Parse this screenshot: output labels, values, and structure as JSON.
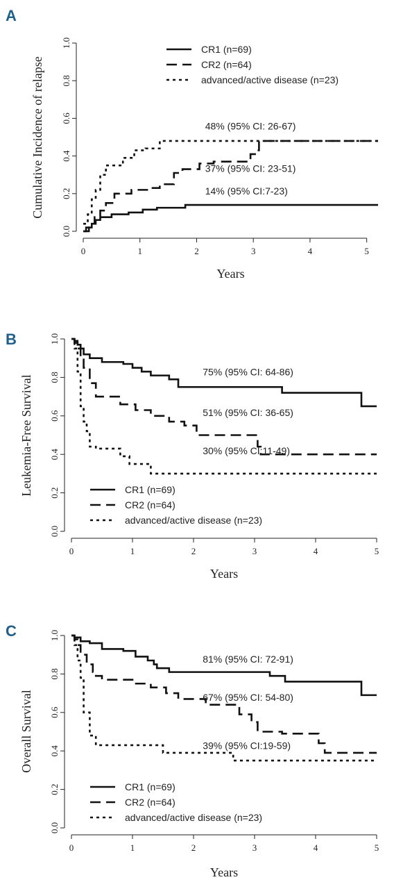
{
  "legend_labels": [
    "CR1 (n=69)",
    "CR2 (n=64)",
    "advanced/active disease (n=23)"
  ],
  "chart_data": [
    {
      "panel": "A",
      "type": "line",
      "xlabel": "Years",
      "ylabel": "Cumulative Incidence of relapse",
      "xlim": [
        0,
        5.2
      ],
      "ylim": [
        0,
        1
      ],
      "xticks": [
        "0",
        "1",
        "2",
        "3",
        "4",
        "5"
      ],
      "yticks": [
        "0.0",
        "0.2",
        "0.4",
        "0.6",
        "0.8",
        "1.0"
      ],
      "legend_position": "top-right",
      "series": [
        {
          "name": "CR1 (n=69)",
          "style": "solid",
          "x": [
            0,
            0.1,
            0.15,
            0.22,
            0.3,
            0.5,
            0.8,
            1.05,
            1.3,
            1.8,
            5.2
          ],
          "y": [
            0,
            0.02,
            0.04,
            0.06,
            0.075,
            0.09,
            0.1,
            0.115,
            0.125,
            0.14,
            0.14
          ],
          "annotation": "14% (95% CI:7-23)",
          "annot_pos": [
            2.15,
            0.195
          ]
        },
        {
          "name": "CR2 (n=64)",
          "style": "dashed",
          "x": [
            0,
            0.05,
            0.12,
            0.2,
            0.3,
            0.4,
            0.55,
            0.85,
            1.2,
            1.35,
            1.6,
            1.75,
            2.05,
            2.3,
            2.95,
            3.05,
            3.1,
            5.2
          ],
          "y": [
            0,
            0.02,
            0.04,
            0.08,
            0.11,
            0.15,
            0.2,
            0.22,
            0.23,
            0.25,
            0.31,
            0.33,
            0.36,
            0.37,
            0.41,
            0.43,
            0.48,
            0.48
          ],
          "annotation": "37% (95% CI: 23-51)",
          "annot_pos": [
            2.15,
            0.315
          ]
        },
        {
          "name": "advanced/active disease (n=23)",
          "style": "dotted",
          "x": [
            0,
            0.08,
            0.15,
            0.22,
            0.3,
            0.4,
            0.7,
            0.9,
            1.1,
            1.35,
            5.2
          ],
          "y": [
            0.04,
            0.09,
            0.17,
            0.22,
            0.3,
            0.35,
            0.39,
            0.43,
            0.44,
            0.48,
            0.48
          ],
          "annotation": "48% (95% CI: 26-67)",
          "annot_pos": [
            2.15,
            0.54
          ]
        }
      ]
    },
    {
      "panel": "B",
      "type": "line",
      "xlabel": "Years",
      "ylabel": "Leukemia-Free Survival",
      "xlim": [
        0,
        5
      ],
      "ylim": [
        0,
        1
      ],
      "xticks": [
        "0",
        "1",
        "2",
        "3",
        "4",
        "5"
      ],
      "yticks": [
        "0.0",
        "0.2",
        "0.4",
        "0.6",
        "0.8",
        "1.0"
      ],
      "legend_position": "bottom-left",
      "series": [
        {
          "name": "CR1 (n=69)",
          "style": "solid",
          "x": [
            0,
            0.05,
            0.1,
            0.15,
            0.2,
            0.3,
            0.5,
            0.85,
            1.0,
            1.15,
            1.3,
            1.6,
            1.75,
            3.45,
            4.75,
            5.0
          ],
          "y": [
            1.0,
            0.99,
            0.97,
            0.95,
            0.92,
            0.9,
            0.88,
            0.87,
            0.85,
            0.83,
            0.81,
            0.79,
            0.75,
            0.72,
            0.65,
            0.65
          ],
          "annotation": "75% (95% CI: 64-86)",
          "annot_pos": [
            2.15,
            0.81
          ]
        },
        {
          "name": "CR2 (n=64)",
          "style": "dashed",
          "x": [
            0,
            0.05,
            0.1,
            0.15,
            0.2,
            0.3,
            0.4,
            0.8,
            1.05,
            1.3,
            1.6,
            1.85,
            2.05,
            3.05,
            3.1,
            5.0
          ],
          "y": [
            1.0,
            0.98,
            0.95,
            0.9,
            0.85,
            0.77,
            0.7,
            0.66,
            0.63,
            0.6,
            0.57,
            0.55,
            0.5,
            0.44,
            0.4,
            0.4
          ],
          "annotation": "51% (95% CI: 36-65)",
          "annot_pos": [
            2.15,
            0.6
          ]
        },
        {
          "name": "advanced/active disease (n=23)",
          "style": "dotted",
          "x": [
            0,
            0.05,
            0.1,
            0.15,
            0.2,
            0.25,
            0.3,
            0.4,
            0.8,
            0.95,
            1.3,
            5.0
          ],
          "y": [
            1.0,
            0.95,
            0.83,
            0.65,
            0.57,
            0.52,
            0.44,
            0.43,
            0.39,
            0.35,
            0.3,
            0.3
          ],
          "annotation": "30% (95% CI:11-49)",
          "annot_pos": [
            2.15,
            0.4
          ]
        }
      ]
    },
    {
      "panel": "C",
      "type": "line",
      "xlabel": "Years",
      "ylabel": "Overall Survival",
      "xlim": [
        0,
        5
      ],
      "ylim": [
        0,
        1
      ],
      "xticks": [
        "0",
        "1",
        "2",
        "3",
        "4",
        "5"
      ],
      "yticks": [
        "0.0",
        "0.2",
        "0.4",
        "0.6",
        "0.8",
        "1.0"
      ],
      "legend_position": "bottom-left",
      "series": [
        {
          "name": "CR1 (n=69)",
          "style": "solid",
          "x": [
            0,
            0.05,
            0.15,
            0.3,
            0.5,
            0.85,
            1.05,
            1.25,
            1.35,
            1.4,
            1.6,
            2.45,
            3.25,
            3.5,
            4.75,
            5.0
          ],
          "y": [
            1.0,
            0.99,
            0.97,
            0.96,
            0.93,
            0.92,
            0.89,
            0.87,
            0.85,
            0.83,
            0.81,
            0.81,
            0.79,
            0.76,
            0.69,
            0.69
          ],
          "annotation": "81% (95% CI: 72-91)",
          "annot_pos": [
            2.15,
            0.86
          ]
        },
        {
          "name": "CR2 (n=64)",
          "style": "dashed",
          "x": [
            0,
            0.05,
            0.1,
            0.15,
            0.25,
            0.35,
            0.4,
            0.5,
            1.0,
            1.3,
            1.55,
            1.75,
            2.2,
            2.75,
            2.95,
            3.05,
            3.45,
            4.05,
            4.15,
            5.0
          ],
          "y": [
            1.0,
            0.98,
            0.95,
            0.9,
            0.85,
            0.81,
            0.79,
            0.77,
            0.75,
            0.73,
            0.7,
            0.67,
            0.64,
            0.59,
            0.55,
            0.5,
            0.49,
            0.44,
            0.39,
            0.39
          ],
          "annotation": "67% (95% CI: 54-80)",
          "annot_pos": [
            2.15,
            0.66
          ]
        },
        {
          "name": "advanced/active disease (n=23)",
          "style": "dotted",
          "x": [
            0,
            0.05,
            0.1,
            0.15,
            0.2,
            0.3,
            0.4,
            1.5,
            2.65,
            5.0
          ],
          "y": [
            1.0,
            0.95,
            0.87,
            0.78,
            0.6,
            0.48,
            0.43,
            0.39,
            0.35,
            0.35
          ],
          "annotation": "39% (95% CI:19-59)",
          "annot_pos": [
            2.15,
            0.41
          ]
        }
      ]
    }
  ]
}
